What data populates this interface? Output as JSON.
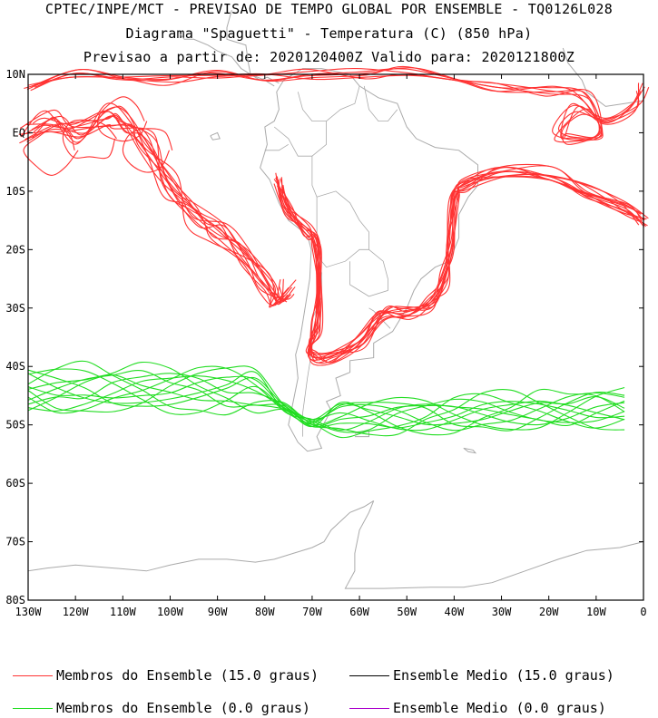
{
  "header": {
    "line1": "CPTEC/INPE/MCT - PREVISAO DE TEMPO GLOBAL POR ENSEMBLE - TQ0126L028",
    "line2": "Diagrama \"Spaguetti\" - Temperatura (C) (850 hPa)",
    "line3": "Previsao a partir de: 2020120400Z  Valido para: 2020121800Z"
  },
  "map": {
    "lon_range": [
      -130,
      0
    ],
    "lat_range": [
      -80,
      10
    ],
    "x_ticks": [
      "130W",
      "120W",
      "110W",
      "100W",
      "90W",
      "80W",
      "70W",
      "60W",
      "50W",
      "40W",
      "30W",
      "20W",
      "10W",
      "0"
    ],
    "y_ticks": [
      "10N",
      "EQ",
      "10S",
      "20S",
      "30S",
      "40S",
      "50S",
      "60S",
      "70S",
      "80S"
    ],
    "colors": {
      "warm_members": "#ff3333",
      "cold_members": "#22dd22",
      "coast": "#aaaaaa",
      "frame": "#000000"
    }
  },
  "legend": {
    "items": [
      {
        "label": "Membros do Ensemble (15.0 graus)",
        "color": "#ff3333"
      },
      {
        "label": "Ensemble Medio (15.0 graus)",
        "color": "#000000"
      },
      {
        "label": "Membros do Ensemble (0.0 graus)",
        "color": "#22dd22"
      },
      {
        "label": "Ensemble Medio (0.0 graus)",
        "color": "#aa00cc"
      }
    ]
  }
}
